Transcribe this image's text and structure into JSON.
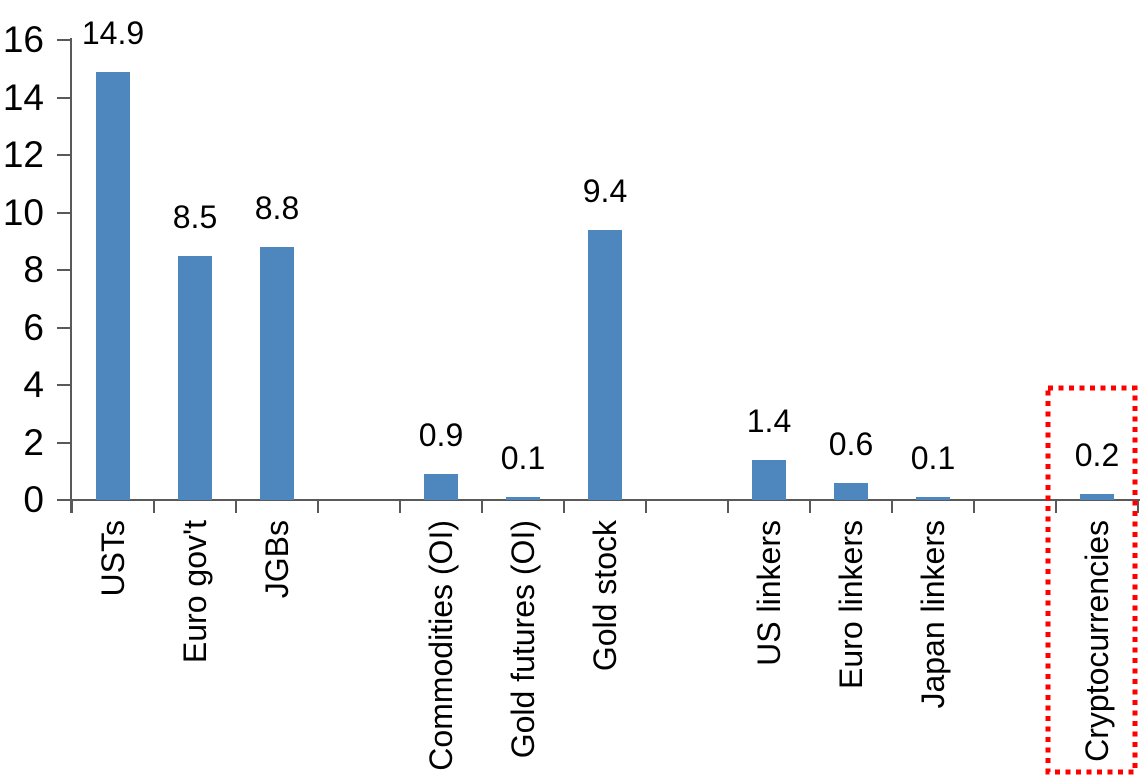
{
  "chart_data": {
    "type": "bar",
    "title": "",
    "xlabel": "",
    "ylabel": "",
    "categories": [
      "USTs",
      "Euro gov't",
      "JGBs",
      "",
      "Commodities (OI)",
      "Gold futures (OI)",
      "Gold stock",
      "",
      "US linkers",
      "Euro linkers",
      "Japan linkers",
      "",
      "Cryptocurrencies"
    ],
    "values": [
      14.9,
      8.5,
      8.8,
      null,
      0.9,
      0.1,
      9.4,
      null,
      1.4,
      0.6,
      0.1,
      null,
      0.2
    ],
    "data_labels": [
      "14.9",
      "8.5",
      "8.8",
      "",
      "0.9",
      "0.1",
      "9.4",
      "",
      "1.4",
      "0.6",
      "0.1",
      "",
      "0.2"
    ],
    "ylim": [
      0,
      16
    ],
    "y_ticks": [
      "0",
      "2",
      "4",
      "6",
      "8",
      "10",
      "12",
      "14",
      "16"
    ],
    "grid": false,
    "legend": false,
    "category_labels_rotated": "90-degrees-bottom-to-top",
    "bar_color": "#4E87BE",
    "axis_color": "#595959",
    "text_color": "#000000",
    "highlight": {
      "target_category": "Cryptocurrencies",
      "shape": "dotted-rectangle",
      "color": "#FF0000"
    }
  }
}
